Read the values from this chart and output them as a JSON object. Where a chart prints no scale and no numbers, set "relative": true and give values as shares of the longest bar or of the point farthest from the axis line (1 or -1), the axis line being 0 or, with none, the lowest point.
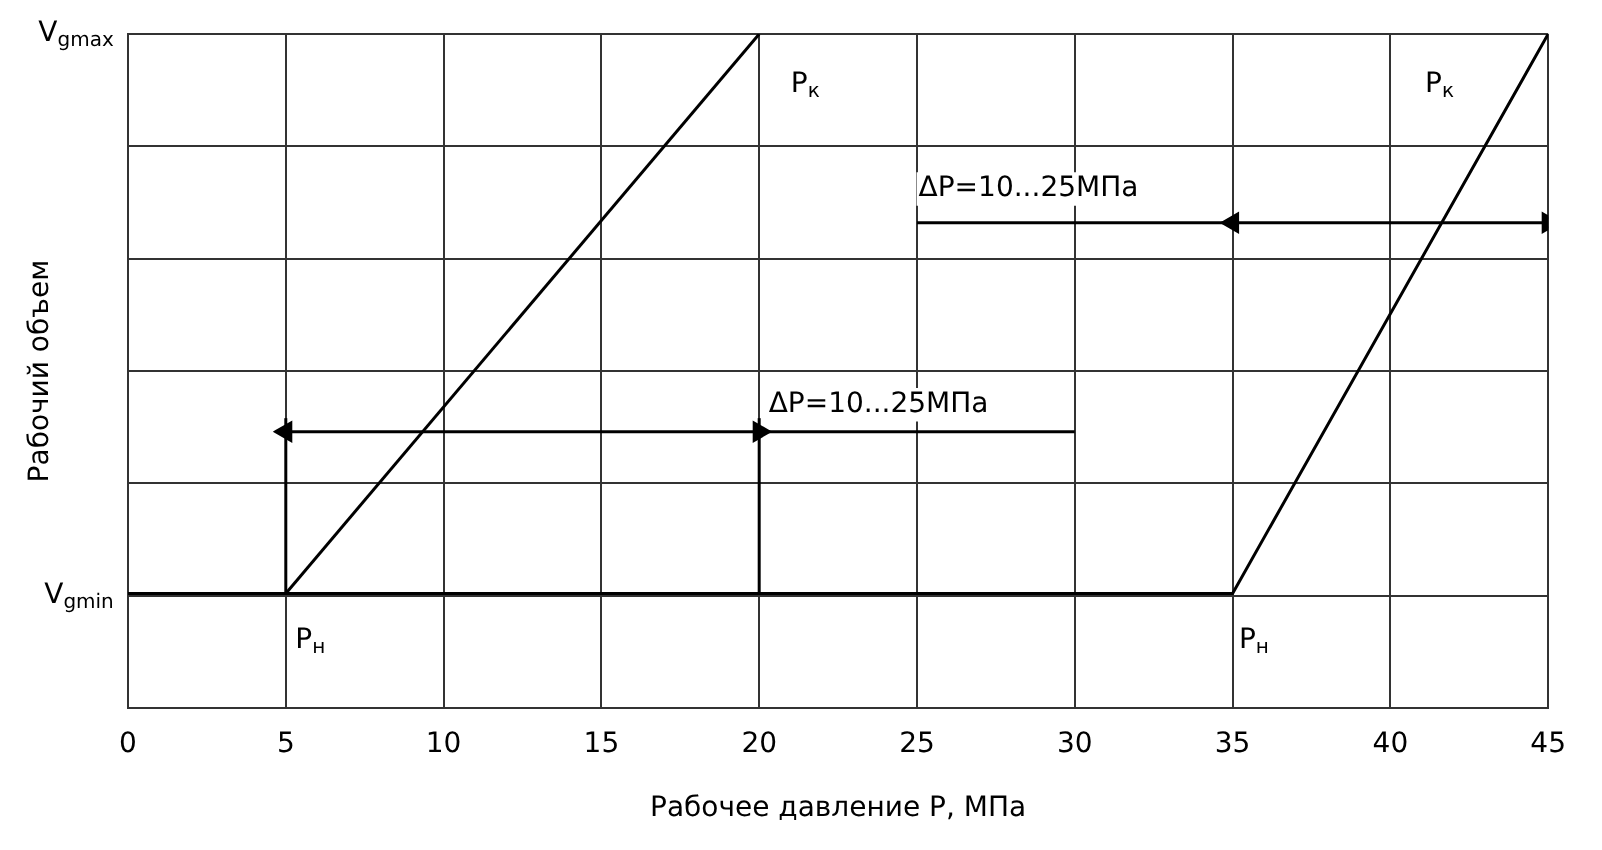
{
  "chart_data": {
    "type": "line",
    "xlabel": "Рабочее давление Р, МПа",
    "ylabel": "Рабочий объем",
    "xlim": [
      0,
      45
    ],
    "xticks": [
      0,
      5,
      10,
      15,
      20,
      25,
      30,
      35,
      40,
      45
    ],
    "relative": true,
    "grid": true,
    "legend": false,
    "marker": "none",
    "line_style": "solid",
    "series": [
      {
        "color": "#000000",
        "x": [
          5,
          20
        ],
        "values": [
          0.17,
          1
        ]
      },
      {
        "color": "#000000",
        "x": [
          0,
          35,
          45
        ],
        "values": [
          0.17,
          0.17,
          1
        ]
      },
      {
        "color": "#000000",
        "x": [
          5,
          5
        ],
        "values": [
          0.17,
          0.43
        ]
      },
      {
        "color": "#000000",
        "x": [
          20,
          20
        ],
        "values": [
          0.17,
          0.43
        ]
      },
      {
        "color": "#000000",
        "x": [
          5,
          20
        ],
        "values": [
          0.41,
          0.41
        ],
        "marker": "triangle"
      },
      {
        "color": "#000000",
        "x": [
          20,
          30
        ],
        "values": [
          0.41,
          0.41
        ]
      },
      {
        "color": "#000000",
        "x": [
          35,
          45
        ],
        "values": [
          0.72,
          0.72
        ],
        "marker": "triangle"
      },
      {
        "color": "#000000",
        "x": [
          25,
          35
        ],
        "values": [
          0.72,
          0.72
        ]
      }
    ],
    "annotations": [
      "V$_{gmax}$",
      "V$_{gmin}$",
      "ΔP=10...25МПа",
      "ΔP=10...25МПа",
      "P$_{к}$",
      "P$_{к}$",
      "P$_{н}$",
      "P$_{н}$"
    ]
  }
}
